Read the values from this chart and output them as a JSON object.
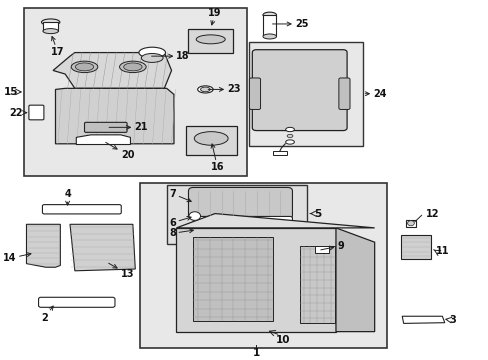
{
  "bg_color": "#ffffff",
  "diagram_bg": "#e8e8e8",
  "box_color": "#ffffff",
  "box_edge": "#333333",
  "line_color": "#222222",
  "text_color": "#111111",
  "fs": 7.0
}
